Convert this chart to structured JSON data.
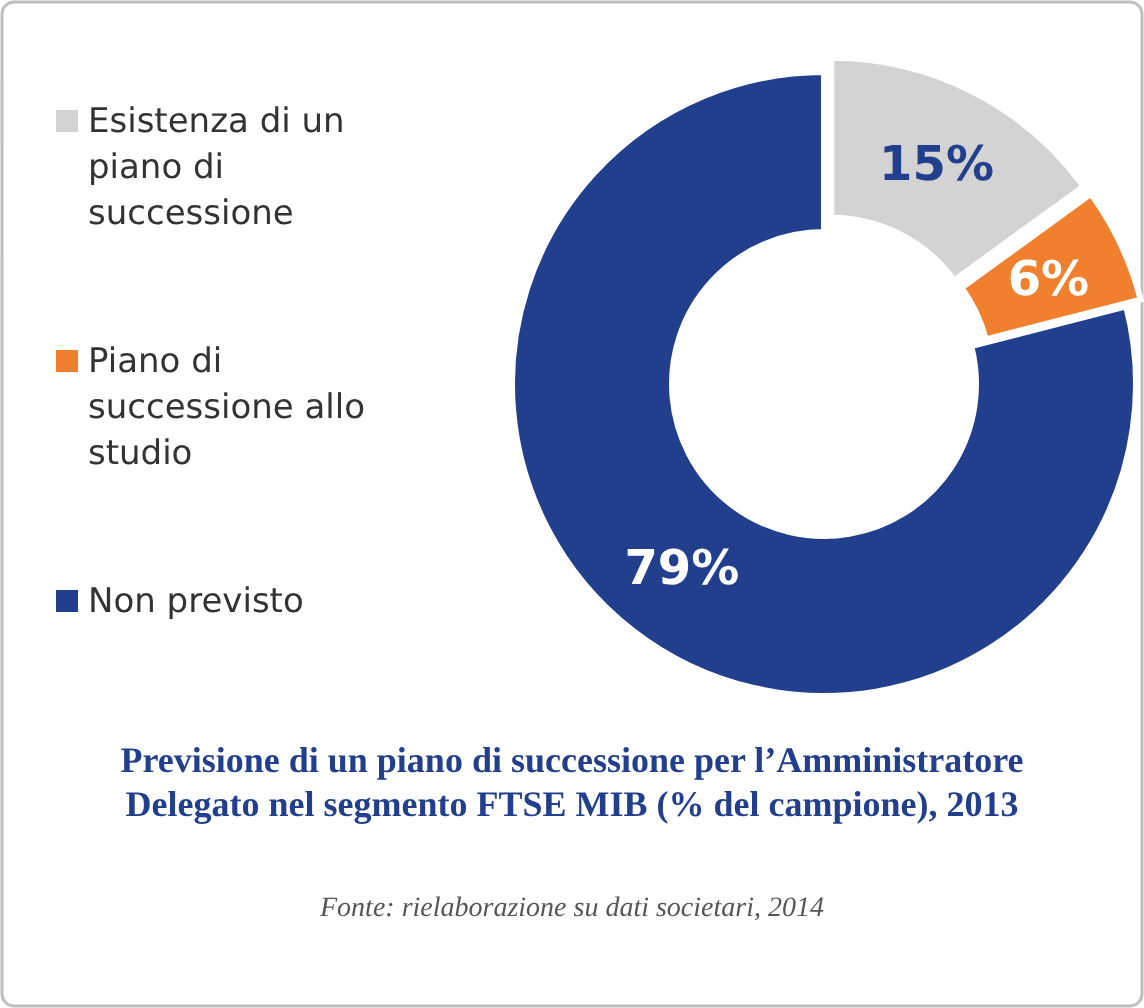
{
  "chart_data": {
    "type": "donut",
    "title": "Previsione di un piano di successione per l’Amministratore Delegato nel segmento FTSE MIB (% del campione), 2013",
    "categories": [
      "Esistenza di un piano di successione",
      "Piano di successione allo studio",
      "Non previsto"
    ],
    "values": [
      15,
      6,
      79
    ],
    "colors": [
      "#d3d3d3",
      "#f0802d",
      "#213f8c"
    ],
    "value_labels": [
      "15%",
      "6%",
      "79%"
    ],
    "legend": "left",
    "annotations": [
      "Fonte: rielaborazione su dati societari, 2014"
    ]
  }
}
